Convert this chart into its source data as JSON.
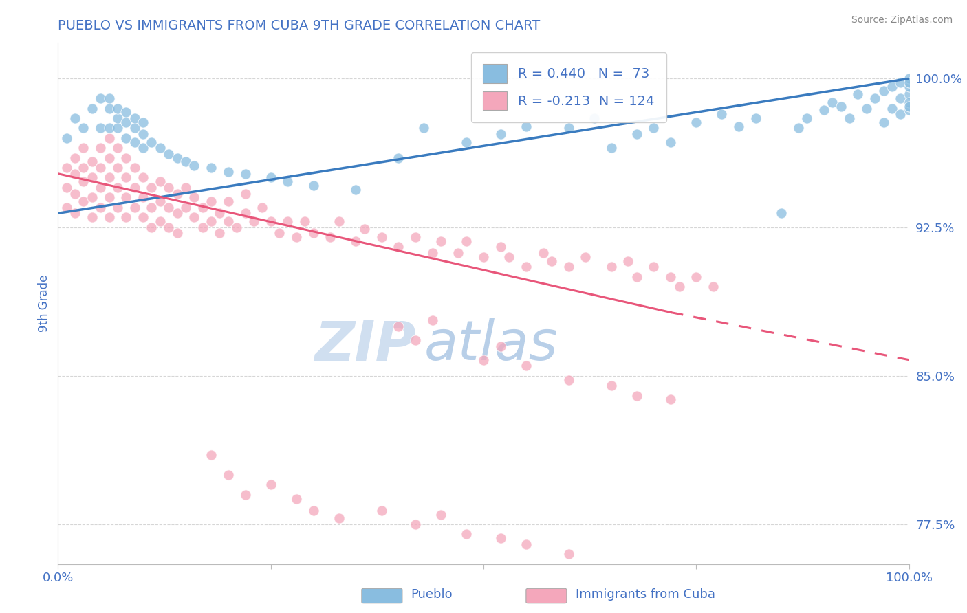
{
  "title": "PUEBLO VS IMMIGRANTS FROM CUBA 9TH GRADE CORRELATION CHART",
  "source_text": "Source: ZipAtlas.com",
  "ylabel": "9th Grade",
  "legend_label_blue": "Pueblo",
  "legend_label_pink": "Immigrants from Cuba",
  "R_blue": 0.44,
  "N_blue": 73,
  "R_pink": -0.213,
  "N_pink": 124,
  "xmin": 0.0,
  "xmax": 1.0,
  "ymin": 0.755,
  "ymax": 1.018,
  "yticks": [
    0.775,
    0.85,
    0.925,
    1.0
  ],
  "ytick_labels": [
    "77.5%",
    "85.0%",
    "92.5%",
    "100.0%"
  ],
  "xticks": [
    0.0,
    0.25,
    0.5,
    0.75,
    1.0
  ],
  "xtick_labels": [
    "0.0%",
    "",
    "",
    "",
    "100.0%"
  ],
  "color_blue": "#89bde0",
  "color_pink": "#f4a7bb",
  "color_trendline_blue": "#3a7bbf",
  "color_trendline_pink": "#e8567a",
  "title_color": "#4472c4",
  "axis_label_color": "#4472c4",
  "tick_label_color": "#4472c4",
  "source_color": "#888888",
  "watermark_zip": "ZIP",
  "watermark_atlas": "atlas",
  "watermark_color_zip": "#d0dff0",
  "watermark_color_atlas": "#b8cfe8",
  "blue_scatter_x": [
    0.01,
    0.02,
    0.03,
    0.04,
    0.05,
    0.05,
    0.06,
    0.06,
    0.06,
    0.07,
    0.07,
    0.07,
    0.08,
    0.08,
    0.08,
    0.09,
    0.09,
    0.09,
    0.1,
    0.1,
    0.1,
    0.11,
    0.12,
    0.13,
    0.14,
    0.15,
    0.16,
    0.18,
    0.2,
    0.22,
    0.25,
    0.27,
    0.3,
    0.35,
    0.4,
    0.43,
    0.48,
    0.52,
    0.55,
    0.6,
    0.63,
    0.65,
    0.68,
    0.7,
    0.72,
    0.75,
    0.78,
    0.8,
    0.82,
    0.85,
    0.87,
    0.88,
    0.9,
    0.91,
    0.92,
    0.93,
    0.94,
    0.95,
    0.96,
    0.97,
    0.97,
    0.98,
    0.98,
    0.99,
    0.99,
    0.99,
    1.0,
    1.0,
    1.0,
    1.0,
    1.0,
    1.0,
    1.0
  ],
  "blue_scatter_y": [
    0.97,
    0.98,
    0.975,
    0.985,
    0.975,
    0.99,
    0.975,
    0.985,
    0.99,
    0.975,
    0.98,
    0.985,
    0.97,
    0.978,
    0.983,
    0.968,
    0.975,
    0.98,
    0.965,
    0.972,
    0.978,
    0.968,
    0.965,
    0.962,
    0.96,
    0.958,
    0.956,
    0.955,
    0.953,
    0.952,
    0.95,
    0.948,
    0.946,
    0.944,
    0.96,
    0.975,
    0.968,
    0.972,
    0.976,
    0.975,
    0.98,
    0.965,
    0.972,
    0.975,
    0.968,
    0.978,
    0.982,
    0.976,
    0.98,
    0.932,
    0.975,
    0.98,
    0.984,
    0.988,
    0.986,
    0.98,
    0.992,
    0.985,
    0.99,
    0.978,
    0.994,
    0.985,
    0.996,
    0.982,
    0.99,
    0.998,
    0.992,
    0.984,
    0.996,
    0.988,
    1.0,
    0.986,
    0.998
  ],
  "pink_scatter_x": [
    0.01,
    0.01,
    0.01,
    0.02,
    0.02,
    0.02,
    0.02,
    0.03,
    0.03,
    0.03,
    0.03,
    0.04,
    0.04,
    0.04,
    0.04,
    0.05,
    0.05,
    0.05,
    0.05,
    0.06,
    0.06,
    0.06,
    0.06,
    0.06,
    0.07,
    0.07,
    0.07,
    0.07,
    0.08,
    0.08,
    0.08,
    0.08,
    0.09,
    0.09,
    0.09,
    0.1,
    0.1,
    0.1,
    0.11,
    0.11,
    0.11,
    0.12,
    0.12,
    0.12,
    0.13,
    0.13,
    0.13,
    0.14,
    0.14,
    0.14,
    0.15,
    0.15,
    0.16,
    0.16,
    0.17,
    0.17,
    0.18,
    0.18,
    0.19,
    0.19,
    0.2,
    0.2,
    0.21,
    0.22,
    0.22,
    0.23,
    0.24,
    0.25,
    0.26,
    0.27,
    0.28,
    0.29,
    0.3,
    0.32,
    0.33,
    0.35,
    0.36,
    0.38,
    0.4,
    0.42,
    0.44,
    0.45,
    0.47,
    0.48,
    0.5,
    0.52,
    0.53,
    0.55,
    0.57,
    0.58,
    0.6,
    0.62,
    0.65,
    0.67,
    0.68,
    0.7,
    0.72,
    0.73,
    0.75,
    0.77,
    0.4,
    0.42,
    0.44,
    0.5,
    0.52,
    0.55,
    0.6,
    0.65,
    0.68,
    0.72,
    0.18,
    0.2,
    0.22,
    0.25,
    0.28,
    0.3,
    0.33,
    0.38,
    0.42,
    0.45,
    0.48,
    0.52,
    0.55,
    0.6
  ],
  "pink_scatter_y": [
    0.955,
    0.945,
    0.935,
    0.952,
    0.942,
    0.932,
    0.96,
    0.948,
    0.938,
    0.955,
    0.965,
    0.95,
    0.94,
    0.93,
    0.958,
    0.945,
    0.955,
    0.935,
    0.965,
    0.94,
    0.95,
    0.96,
    0.93,
    0.97,
    0.945,
    0.935,
    0.955,
    0.965,
    0.94,
    0.95,
    0.93,
    0.96,
    0.935,
    0.945,
    0.955,
    0.93,
    0.94,
    0.95,
    0.935,
    0.945,
    0.925,
    0.938,
    0.948,
    0.928,
    0.935,
    0.945,
    0.925,
    0.932,
    0.942,
    0.922,
    0.935,
    0.945,
    0.93,
    0.94,
    0.925,
    0.935,
    0.928,
    0.938,
    0.922,
    0.932,
    0.928,
    0.938,
    0.925,
    0.932,
    0.942,
    0.928,
    0.935,
    0.928,
    0.922,
    0.928,
    0.92,
    0.928,
    0.922,
    0.92,
    0.928,
    0.918,
    0.924,
    0.92,
    0.915,
    0.92,
    0.912,
    0.918,
    0.912,
    0.918,
    0.91,
    0.915,
    0.91,
    0.905,
    0.912,
    0.908,
    0.905,
    0.91,
    0.905,
    0.908,
    0.9,
    0.905,
    0.9,
    0.895,
    0.9,
    0.895,
    0.875,
    0.868,
    0.878,
    0.858,
    0.865,
    0.855,
    0.848,
    0.845,
    0.84,
    0.838,
    0.81,
    0.8,
    0.79,
    0.795,
    0.788,
    0.782,
    0.778,
    0.782,
    0.775,
    0.78,
    0.77,
    0.768,
    0.765,
    0.76
  ],
  "trendline_blue_x0": 0.0,
  "trendline_blue_y0": 0.932,
  "trendline_blue_x1": 1.0,
  "trendline_blue_y1": 1.0,
  "trendline_pink_x0": 0.0,
  "trendline_pink_y0": 0.952,
  "trendline_pink_x1_solid": 0.72,
  "trendline_pink_y1_solid": 0.882,
  "trendline_pink_x1_dash": 1.0,
  "trendline_pink_y1_dash": 0.858
}
